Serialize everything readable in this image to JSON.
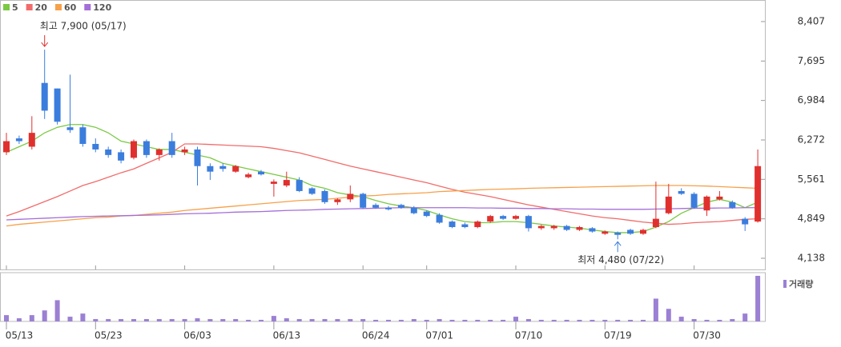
{
  "chart_data": {
    "type": "candlestick",
    "categories": [
      "05/13",
      null,
      null,
      null,
      null,
      null,
      null,
      "05/23",
      null,
      null,
      null,
      null,
      null,
      null,
      "06/03",
      null,
      null,
      null,
      null,
      null,
      null,
      "06/13",
      null,
      null,
      null,
      null,
      null,
      null,
      "06/24",
      null,
      null,
      null,
      null,
      "07/01",
      null,
      null,
      null,
      null,
      null,
      null,
      "07/10",
      null,
      null,
      null,
      null,
      null,
      null,
      "07/19",
      null,
      null,
      null,
      null,
      null,
      null,
      "07/30",
      null,
      null,
      null,
      null,
      null
    ],
    "open": [
      6050,
      6300,
      6150,
      7300,
      7200,
      6500,
      6500,
      6200,
      6100,
      6050,
      5950,
      6250,
      6000,
      6250,
      6050,
      6100,
      5800,
      5800,
      5700,
      5600,
      5700,
      5480,
      5450,
      5550,
      5400,
      5350,
      5150,
      5200,
      5300,
      5100,
      5050,
      5100,
      5050,
      4980,
      4920,
      4800,
      4750,
      4700,
      4800,
      4900,
      4850,
      4900,
      4680,
      4680,
      4720,
      4650,
      4680,
      4580,
      4600,
      4650,
      4580,
      4700,
      4950,
      5350,
      5300,
      5000,
      5200,
      5150,
      4850,
      4800
    ],
    "high": [
      6400,
      6350,
      6700,
      7900,
      7200,
      7450,
      6550,
      6300,
      6150,
      6100,
      6280,
      6280,
      6120,
      6400,
      6150,
      6150,
      5850,
      5850,
      5820,
      5680,
      5730,
      5560,
      5700,
      5600,
      5420,
      5380,
      5220,
      5450,
      5320,
      5130,
      5080,
      5120,
      5080,
      5000,
      4950,
      4820,
      4780,
      4820,
      4920,
      4920,
      4920,
      4920,
      4740,
      4740,
      4740,
      4720,
      4700,
      4640,
      4620,
      4670,
      4670,
      5520,
      5480,
      5400,
      5330,
      5270,
      5350,
      5180,
      4880,
      6100
    ],
    "low": [
      6000,
      6200,
      6100,
      6650,
      6550,
      6400,
      6150,
      6050,
      5950,
      5850,
      5920,
      5950,
      5900,
      5950,
      6000,
      5450,
      5550,
      5700,
      5680,
      5580,
      5630,
      5250,
      5420,
      5330,
      5280,
      5120,
      5100,
      5150,
      5030,
      5030,
      5000,
      5030,
      4930,
      4880,
      4760,
      4680,
      4680,
      4680,
      4780,
      4830,
      4830,
      4620,
      4650,
      4650,
      4630,
      4630,
      4600,
      4560,
      4480,
      4560,
      4560,
      4680,
      4930,
      5280,
      5030,
      4900,
      5180,
      5030,
      4630,
      4780
    ],
    "close": [
      6250,
      6250,
      6400,
      6800,
      6600,
      6450,
      6200,
      6100,
      6000,
      5900,
      6250,
      6000,
      6100,
      6000,
      6100,
      5800,
      5700,
      5750,
      5800,
      5650,
      5650,
      5520,
      5550,
      5350,
      5300,
      5150,
      5200,
      5300,
      5050,
      5050,
      5020,
      5050,
      4950,
      4900,
      4780,
      4700,
      4700,
      4800,
      4900,
      4850,
      4900,
      4680,
      4720,
      4720,
      4650,
      4700,
      4620,
      4620,
      4560,
      4580,
      4650,
      4850,
      5250,
      5300,
      5050,
      5250,
      5250,
      5050,
      4750,
      5800
    ],
    "up_color": "#e0302e",
    "down_color": "#3b7ddd",
    "series": [
      {
        "name": "5",
        "color": "#7ac943",
        "values": [
          6050,
          6150,
          6250,
          6400,
          6500,
          6550,
          6550,
          6500,
          6400,
          6250,
          6200,
          6150,
          6100,
          6100,
          6050,
          6000,
          5950,
          5850,
          5800,
          5750,
          5700,
          5650,
          5600,
          5550,
          5450,
          5400,
          5320,
          5280,
          5250,
          5180,
          5120,
          5080,
          5050,
          5000,
          4920,
          4850,
          4800,
          4780,
          4780,
          4800,
          4800,
          4780,
          4750,
          4720,
          4700,
          4680,
          4650,
          4620,
          4600,
          4600,
          4620,
          4700,
          4800,
          4950,
          5050,
          5150,
          5200,
          5150,
          5050,
          5150
        ]
      },
      {
        "name": "20",
        "color": "#f26b6b",
        "values": [
          4900,
          4980,
          5070,
          5160,
          5250,
          5350,
          5450,
          5520,
          5600,
          5680,
          5750,
          5850,
          5950,
          6050,
          6200,
          6200,
          6190,
          6180,
          6170,
          6160,
          6150,
          6120,
          6080,
          6040,
          5980,
          5920,
          5860,
          5800,
          5750,
          5700,
          5650,
          5600,
          5550,
          5500,
          5440,
          5380,
          5330,
          5290,
          5250,
          5200,
          5150,
          5100,
          5060,
          5020,
          4980,
          4940,
          4900,
          4870,
          4850,
          4820,
          4790,
          4770,
          4750,
          4760,
          4780,
          4790,
          4800,
          4820,
          4840,
          4850
        ]
      },
      {
        "name": "60",
        "color": "#f7a04a",
        "values": [
          4720,
          4750,
          4770,
          4790,
          4810,
          4830,
          4850,
          4870,
          4880,
          4900,
          4910,
          4930,
          4950,
          4970,
          5000,
          5020,
          5040,
          5060,
          5080,
          5100,
          5120,
          5140,
          5160,
          5180,
          5190,
          5200,
          5220,
          5240,
          5260,
          5270,
          5290,
          5300,
          5310,
          5320,
          5340,
          5350,
          5360,
          5370,
          5380,
          5385,
          5390,
          5400,
          5405,
          5410,
          5415,
          5420,
          5425,
          5430,
          5435,
          5440,
          5445,
          5450,
          5450,
          5450,
          5445,
          5440,
          5430,
          5420,
          5410,
          5400
        ]
      },
      {
        "name": "120",
        "color": "#a46fd8",
        "values": [
          4830,
          4840,
          4850,
          4860,
          4870,
          4880,
          4890,
          4895,
          4900,
          4905,
          4910,
          4915,
          4920,
          4930,
          4940,
          4945,
          4950,
          4960,
          4970,
          4975,
          4980,
          4990,
          5000,
          5005,
          5010,
          5020,
          5025,
          5030,
          5035,
          5040,
          5045,
          5050,
          5050,
          5050,
          5050,
          5050,
          5050,
          5045,
          5045,
          5040,
          5040,
          5035,
          5035,
          5030,
          5030,
          5025,
          5025,
          5020,
          5020,
          5020,
          5020,
          5025,
          5030,
          5035,
          5040,
          5040,
          5045,
          5045,
          5050,
          5050
        ]
      }
    ],
    "ylim": [
      3936,
      8796
    ],
    "yticks": [
      {
        "value": 8407,
        "label": "8,407"
      },
      {
        "value": 7695,
        "label": "7,695"
      },
      {
        "value": 6984,
        "label": "6,984"
      },
      {
        "value": 6272,
        "label": "6,272"
      },
      {
        "value": 5561,
        "label": "5,561"
      },
      {
        "value": 4849,
        "label": "4,849"
      },
      {
        "value": 4138,
        "label": "4,138"
      }
    ],
    "annotations": {
      "high": "최고 7,900 (05/17)",
      "low": "최저 4,480 (07/22)"
    },
    "volume": {
      "label": "거래량",
      "color": "#9b80d4",
      "ylim": [
        0,
        60
      ],
      "values": [
        8,
        4,
        8,
        14,
        27,
        6,
        10,
        3,
        3,
        3,
        3,
        3,
        3,
        3,
        3,
        4,
        3,
        3,
        3,
        2,
        2,
        7,
        4,
        3,
        3,
        3,
        3,
        3,
        3,
        2,
        2,
        2,
        3,
        2,
        3,
        2,
        2,
        2,
        2,
        2,
        6,
        3,
        2,
        2,
        2,
        2,
        2,
        2,
        2,
        2,
        2,
        29,
        16,
        6,
        3,
        2,
        2,
        3,
        10,
        58
      ]
    }
  }
}
